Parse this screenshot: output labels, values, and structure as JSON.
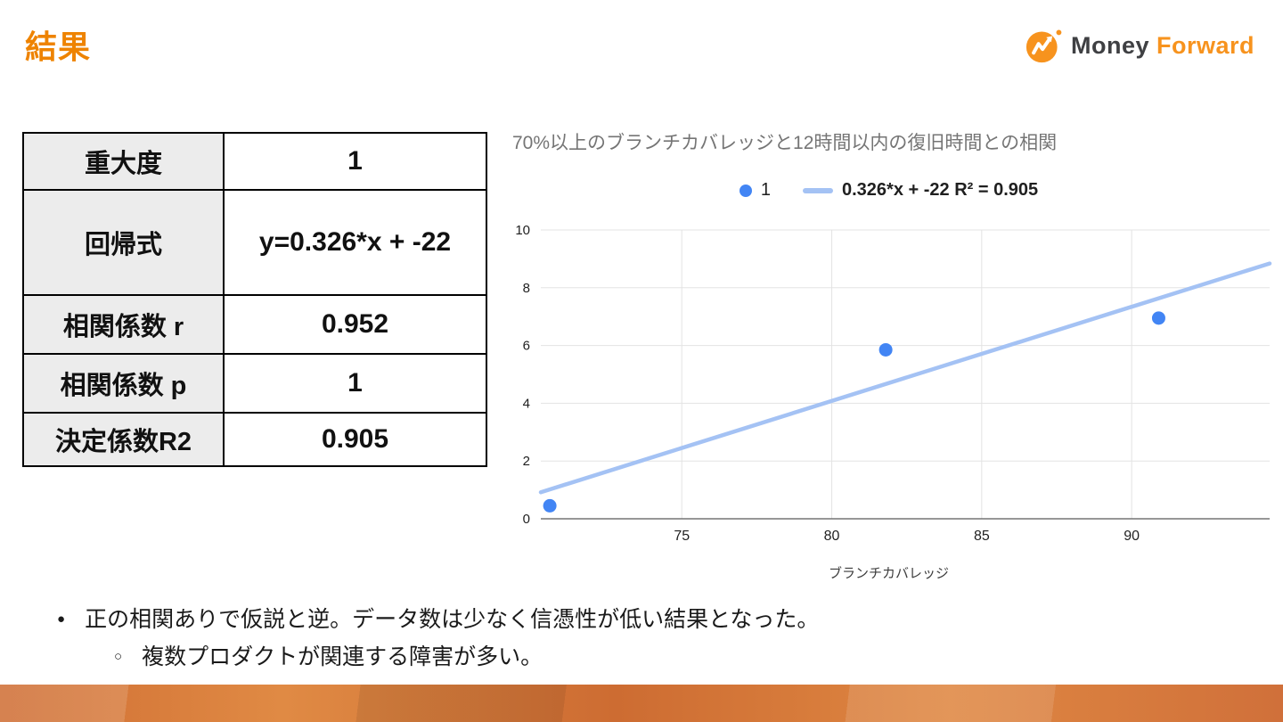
{
  "slide": {
    "title": "結果",
    "logo": {
      "money": "Money ",
      "forward": "Forward"
    },
    "colors": {
      "title_orange": "#EE8300",
      "brand_dark": "#3f4043",
      "brand_orange": "#F7931E"
    },
    "table": {
      "rows": [
        {
          "label": "重大度",
          "value": "1"
        },
        {
          "label": "回帰式",
          "value": "y=0.326*x + -22"
        },
        {
          "label": "相関係数 r",
          "value": "0.952"
        },
        {
          "label": "相関係数 p",
          "value": "1"
        },
        {
          "label": "決定係数R2",
          "value": "0.905"
        }
      ]
    },
    "bullets": [
      {
        "marker": "●",
        "text": "正の相関ありで仮説と逆。データ数は少なく信憑性が低い結果となった。"
      },
      {
        "marker": "○",
        "text": "複数プロダクトが関連する障害が多い。"
      }
    ]
  },
  "chart_data": {
    "type": "scatter",
    "title": "70%以上のブランチカバレッジと12時間以内の復旧時間との相関",
    "xlabel": "ブランチカバレッジ",
    "x_ticks": [
      75,
      80,
      85,
      90
    ],
    "y_ticks": [
      0,
      2,
      4,
      6,
      8,
      10
    ],
    "xlim": [
      70.3,
      94.6
    ],
    "ylim": [
      0,
      10
    ],
    "grid_color": "#e3e3e3",
    "axis_color": "#757575",
    "series": [
      {
        "name": "1",
        "color": "#4285F4",
        "points": [
          [
            70.6,
            0.45
          ],
          [
            81.8,
            5.85
          ],
          [
            90.9,
            6.95
          ]
        ]
      }
    ],
    "trendline": {
      "label": "0.326*x + -22 R² = 0.905",
      "slope": 0.326,
      "intercept": -22,
      "r2": 0.905,
      "color": "#A4C2F4"
    }
  }
}
